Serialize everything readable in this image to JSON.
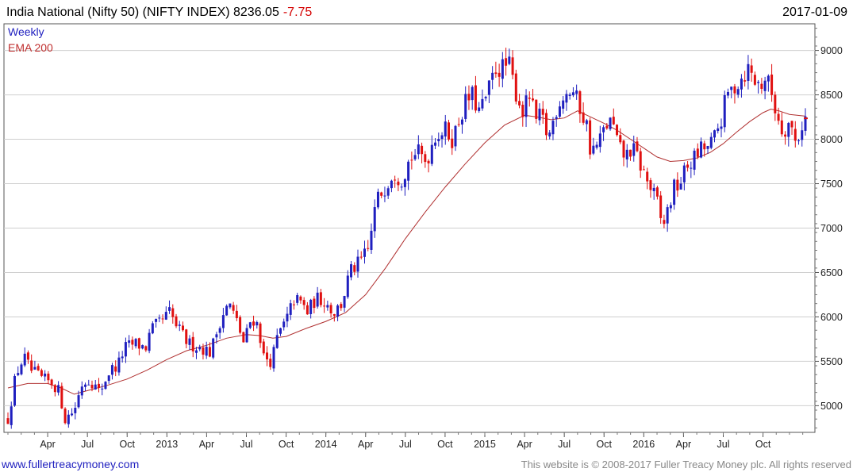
{
  "header": {
    "title": "India National (Nifty 50) (NIFTY INDEX) 8236.05",
    "change": "-7.75",
    "date": "2017-01-09"
  },
  "legend": {
    "weekly": "Weekly",
    "ema": "EMA 200"
  },
  "footer": {
    "website": "www.fullertreacymoney.com",
    "copyright": "This website is © 2008-2017 Fuller Treacy Money plc. All rights reserved"
  },
  "colors": {
    "up": "#1f1fbf",
    "down": "#e01010",
    "ema": "#b03030",
    "grid": "#cfcfcf",
    "frame": "#555555"
  },
  "chart_data": {
    "type": "candlestick",
    "title": "India National (Nifty 50) (NIFTY INDEX) 8236.05 -7.75",
    "frequency": "Weekly",
    "overlay": "EMA 200",
    "ylim": [
      4700,
      9300
    ],
    "yticks": [
      5000,
      5500,
      6000,
      6500,
      7000,
      7500,
      8000,
      8500,
      9000
    ],
    "xticks": [
      {
        "label": "Apr",
        "t": 3
      },
      {
        "label": "Jul",
        "t": 6
      },
      {
        "label": "Oct",
        "t": 9
      },
      {
        "label": "2013",
        "t": 12
      },
      {
        "label": "Apr",
        "t": 15
      },
      {
        "label": "Jul",
        "t": 18
      },
      {
        "label": "Oct",
        "t": 21
      },
      {
        "label": "2014",
        "t": 24
      },
      {
        "label": "Apr",
        "t": 27
      },
      {
        "label": "Jul",
        "t": 30
      },
      {
        "label": "Oct",
        "t": 33
      },
      {
        "label": "2015",
        "t": 36
      },
      {
        "label": "Apr",
        "t": 39
      },
      {
        "label": "Jul",
        "t": 42
      },
      {
        "label": "Oct",
        "t": 45
      },
      {
        "label": "2016",
        "t": 48
      },
      {
        "label": "Apr",
        "t": 51
      },
      {
        "label": "Jul",
        "t": 54
      },
      {
        "label": "Oct",
        "t": 57
      }
    ],
    "t_range": [
      0,
      60.2
    ],
    "price_path": [
      [
        0.0,
        4850
      ],
      [
        0.6,
        5350
      ],
      [
        1.2,
        5550
      ],
      [
        1.7,
        5400
      ],
      [
        2.6,
        5300
      ],
      [
        3.4,
        5250
      ],
      [
        3.9,
        5150
      ],
      [
        4.3,
        4850
      ],
      [
        5.0,
        4950
      ],
      [
        5.6,
        5250
      ],
      [
        6.2,
        5300
      ],
      [
        6.9,
        5150
      ],
      [
        7.7,
        5400
      ],
      [
        8.3,
        5450
      ],
      [
        8.8,
        5650
      ],
      [
        9.6,
        5700
      ],
      [
        10.4,
        5650
      ],
      [
        10.8,
        5850
      ],
      [
        11.6,
        5950
      ],
      [
        12.2,
        6050
      ],
      [
        12.7,
        5900
      ],
      [
        13.6,
        5700
      ],
      [
        14.7,
        5650
      ],
      [
        15.3,
        5600
      ],
      [
        16.1,
        6000
      ],
      [
        16.7,
        6150
      ],
      [
        17.4,
        5900
      ],
      [
        17.8,
        5700
      ],
      [
        18.4,
        6000
      ],
      [
        18.9,
        5900
      ],
      [
        19.3,
        5550
      ],
      [
        19.9,
        5500
      ],
      [
        20.4,
        5800
      ],
      [
        21.0,
        5950
      ],
      [
        21.6,
        6200
      ],
      [
        22.2,
        6150
      ],
      [
        22.6,
        6050
      ],
      [
        23.2,
        6200
      ],
      [
        23.8,
        6200
      ],
      [
        24.6,
        6050
      ],
      [
        25.2,
        6150
      ],
      [
        25.8,
        6500
      ],
      [
        26.5,
        6600
      ],
      [
        27.2,
        6750
      ],
      [
        27.8,
        7300
      ],
      [
        28.4,
        7450
      ],
      [
        29.1,
        7650
      ],
      [
        29.7,
        7550
      ],
      [
        30.4,
        7800
      ],
      [
        30.9,
        7850
      ],
      [
        31.6,
        7750
      ],
      [
        32.2,
        8050
      ],
      [
        33.0,
        8100
      ],
      [
        33.6,
        8000
      ],
      [
        34.0,
        8200
      ],
      [
        34.5,
        8400
      ],
      [
        35.0,
        8500
      ],
      [
        35.6,
        8300
      ],
      [
        36.2,
        8500
      ],
      [
        36.8,
        8800
      ],
      [
        37.4,
        8800
      ],
      [
        37.8,
        8850
      ],
      [
        38.3,
        8550
      ],
      [
        38.9,
        8300
      ],
      [
        39.4,
        8500
      ],
      [
        39.8,
        8200
      ],
      [
        40.3,
        8250
      ],
      [
        40.8,
        8000
      ],
      [
        41.4,
        8350
      ],
      [
        41.9,
        8500
      ],
      [
        42.6,
        8550
      ],
      [
        43.2,
        8350
      ],
      [
        43.7,
        8150
      ],
      [
        44.0,
        7850
      ],
      [
        44.6,
        7950
      ],
      [
        45.1,
        8150
      ],
      [
        45.6,
        8200
      ],
      [
        46.1,
        7900
      ],
      [
        46.6,
        7800
      ],
      [
        47.1,
        7900
      ],
      [
        47.5,
        7800
      ],
      [
        47.9,
        7650
      ],
      [
        48.5,
        7450
      ],
      [
        49.0,
        7300
      ],
      [
        49.4,
        7000
      ],
      [
        49.8,
        7200
      ],
      [
        50.3,
        7450
      ],
      [
        50.7,
        7500
      ],
      [
        51.3,
        7700
      ],
      [
        51.9,
        7800
      ],
      [
        52.4,
        7900
      ],
      [
        52.9,
        7900
      ],
      [
        53.3,
        8000
      ],
      [
        53.8,
        8200
      ],
      [
        54.3,
        8500
      ],
      [
        54.9,
        8600
      ],
      [
        55.4,
        8700
      ],
      [
        55.9,
        8800
      ],
      [
        56.4,
        8650
      ],
      [
        56.8,
        8600
      ],
      [
        57.2,
        8700
      ],
      [
        57.6,
        8550
      ],
      [
        58.0,
        8300
      ],
      [
        58.5,
        8100
      ],
      [
        59.0,
        8200
      ],
      [
        59.5,
        7950
      ],
      [
        59.9,
        8150
      ],
      [
        60.2,
        8236
      ]
    ],
    "ema_path": [
      [
        0.0,
        5200
      ],
      [
        1.5,
        5250
      ],
      [
        3.0,
        5250
      ],
      [
        4.0,
        5200
      ],
      [
        5.0,
        5130
      ],
      [
        6.0,
        5170
      ],
      [
        7.5,
        5230
      ],
      [
        9.0,
        5300
      ],
      [
        10.5,
        5400
      ],
      [
        12.0,
        5520
      ],
      [
        13.5,
        5620
      ],
      [
        15.0,
        5680
      ],
      [
        16.5,
        5760
      ],
      [
        18.0,
        5800
      ],
      [
        19.0,
        5790
      ],
      [
        20.0,
        5760
      ],
      [
        21.0,
        5780
      ],
      [
        22.5,
        5870
      ],
      [
        24.0,
        5950
      ],
      [
        25.5,
        6050
      ],
      [
        27.0,
        6250
      ],
      [
        28.5,
        6550
      ],
      [
        30.0,
        6880
      ],
      [
        31.5,
        7180
      ],
      [
        33.0,
        7460
      ],
      [
        34.5,
        7720
      ],
      [
        36.0,
        7960
      ],
      [
        37.5,
        8160
      ],
      [
        39.0,
        8270
      ],
      [
        40.0,
        8250
      ],
      [
        41.0,
        8220
      ],
      [
        42.0,
        8240
      ],
      [
        43.0,
        8320
      ],
      [
        44.0,
        8250
      ],
      [
        45.0,
        8180
      ],
      [
        46.0,
        8100
      ],
      [
        47.0,
        8000
      ],
      [
        48.0,
        7900
      ],
      [
        49.0,
        7800
      ],
      [
        50.0,
        7750
      ],
      [
        51.0,
        7760
      ],
      [
        52.0,
        7790
      ],
      [
        53.0,
        7850
      ],
      [
        54.0,
        7950
      ],
      [
        55.0,
        8080
      ],
      [
        56.0,
        8200
      ],
      [
        57.0,
        8300
      ],
      [
        57.6,
        8340
      ],
      [
        58.2,
        8320
      ],
      [
        59.0,
        8280
      ],
      [
        60.2,
        8260
      ]
    ]
  }
}
